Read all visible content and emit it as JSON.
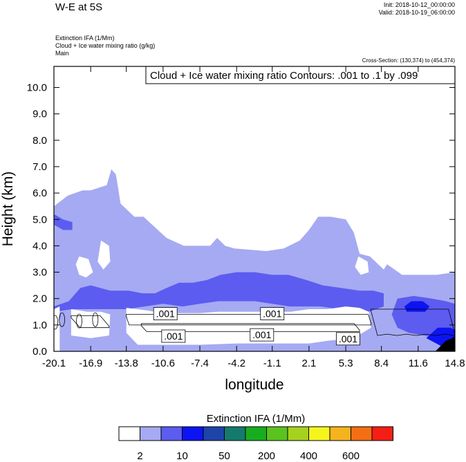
{
  "header": {
    "title": "W-E at 5S",
    "init": "Init: 2018-10-12_00:00:00",
    "valid": "Valid: 2018-10-19_06:00:00",
    "field_lines": [
      "Extinction IFA   (1/Mm)",
      "Cloud + Ice water mixing ratio   (g/kg)",
      "Main"
    ],
    "cross_section": "Cross-Section: (130,374) to (454,374)"
  },
  "chart_data": {
    "type": "heatmap",
    "contour_info": "Cloud + Ice water mixing ratio Contours: .001 to .1 by .099",
    "xlabel": "longitude",
    "ylabel": "Height (km)",
    "x_ticks": [
      "-20.1",
      "-16.9",
      "-13.8",
      "-10.6",
      "-7.4",
      "-4.2",
      "-1.1",
      "2.1",
      "5.3",
      "8.4",
      "11.6",
      "14.8"
    ],
    "y_ticks": [
      "0.0",
      "1.0",
      "2.0",
      "3.0",
      "4.0",
      "5.0",
      "6.0",
      "7.0",
      "8.0",
      "9.0",
      "10.0"
    ],
    "xlim": [
      -20.1,
      14.8
    ],
    "ylim": [
      0,
      10.8
    ],
    "contour_labels": [
      {
        "text": ".001",
        "x": -10.4,
        "y": 1.4
      },
      {
        "text": ".001",
        "x": -1.1,
        "y": 1.4
      },
      {
        "text": ".001",
        "x": -9.7,
        "y": 0.55
      },
      {
        "text": ".001",
        "x": -2.0,
        "y": 0.6
      },
      {
        "text": ".001",
        "x": 5.5,
        "y": 0.45
      }
    ],
    "regions": [
      {
        "level": "2-5",
        "color": "#a5aaf2",
        "points": [
          [
            -20.1,
            5.5
          ],
          [
            -18.9,
            5.9
          ],
          [
            -17.6,
            6.1
          ],
          [
            -16.9,
            6.1
          ],
          [
            -16.2,
            6.2
          ],
          [
            -15.5,
            6.3
          ],
          [
            -15.1,
            6.9
          ],
          [
            -14.7,
            6.7
          ],
          [
            -14.3,
            5.6
          ],
          [
            -13.1,
            5.1
          ],
          [
            -12.3,
            5.1
          ],
          [
            -11.3,
            4.7
          ],
          [
            -10.3,
            4.3
          ],
          [
            -8.8,
            4.0
          ],
          [
            -6.5,
            4.0
          ],
          [
            -5.9,
            4.3
          ],
          [
            -5.2,
            4.0
          ],
          [
            -4.4,
            3.9
          ],
          [
            -1.6,
            3.8
          ],
          [
            -0.1,
            3.9
          ],
          [
            1.3,
            4.2
          ],
          [
            2.1,
            4.6
          ],
          [
            2.9,
            5.1
          ],
          [
            4.0,
            5.1
          ],
          [
            5.3,
            5.0
          ],
          [
            6.0,
            4.5
          ],
          [
            6.5,
            3.7
          ],
          [
            7.4,
            3.6
          ],
          [
            8.6,
            3.1
          ],
          [
            8.9,
            3.3
          ],
          [
            10.2,
            2.9
          ],
          [
            11.6,
            2.9
          ],
          [
            13.2,
            2.9
          ],
          [
            14.8,
            3.0
          ],
          [
            14.8,
            0.0
          ],
          [
            -20.1,
            0.0
          ]
        ]
      },
      {
        "level": "5-10",
        "color": "#5c5cf0",
        "points": [
          [
            -20.1,
            1.7
          ],
          [
            -18.8,
            1.9
          ],
          [
            -17.8,
            2.4
          ],
          [
            -16.9,
            2.5
          ],
          [
            -15.2,
            2.3
          ],
          [
            -13.6,
            2.3
          ],
          [
            -12.4,
            2.2
          ],
          [
            -11.3,
            2.2
          ],
          [
            -10.3,
            2.4
          ],
          [
            -9.2,
            2.6
          ],
          [
            -8.0,
            2.6
          ],
          [
            -6.8,
            2.7
          ],
          [
            -5.6,
            2.9
          ],
          [
            -4.2,
            3.0
          ],
          [
            -2.6,
            3.0
          ],
          [
            -1.1,
            2.9
          ],
          [
            0.3,
            2.9
          ],
          [
            1.9,
            2.7
          ],
          [
            3.3,
            2.5
          ],
          [
            4.9,
            2.4
          ],
          [
            6.5,
            2.3
          ],
          [
            7.7,
            2.3
          ],
          [
            8.6,
            2.2
          ],
          [
            8.6,
            1.7
          ],
          [
            7.3,
            1.5
          ],
          [
            6.0,
            1.5
          ],
          [
            4.7,
            1.6
          ],
          [
            3.1,
            1.7
          ],
          [
            1.7,
            1.7
          ],
          [
            0.4,
            1.7
          ],
          [
            -1.1,
            1.8
          ],
          [
            -2.6,
            1.9
          ],
          [
            -4.2,
            1.9
          ],
          [
            -5.8,
            1.9
          ],
          [
            -7.4,
            1.8
          ],
          [
            -8.9,
            1.7
          ],
          [
            -10.6,
            1.8
          ],
          [
            -12.2,
            1.7
          ],
          [
            -13.8,
            1.6
          ],
          [
            -15.4,
            1.6
          ],
          [
            -16.9,
            1.6
          ],
          [
            -18.5,
            1.6
          ],
          [
            -20.1,
            1.5
          ]
        ]
      },
      {
        "level": "5-10",
        "color": "#5c5cf0",
        "points": [
          [
            -20.1,
            5.2
          ],
          [
            -19.3,
            5.0
          ],
          [
            -18.5,
            4.9
          ],
          [
            -18.5,
            4.6
          ],
          [
            -19.3,
            4.6
          ],
          [
            -20.1,
            4.8
          ]
        ]
      },
      {
        "level": "5-10",
        "color": "#5c5cf0",
        "points": [
          [
            -20.1,
            1.4
          ],
          [
            -19.8,
            1.6
          ],
          [
            -19.5,
            1.4
          ],
          [
            -19.7,
            0.9
          ],
          [
            -20.1,
            0.8
          ]
        ]
      },
      {
        "level": "5-10",
        "color": "#5c5cf0",
        "points": [
          [
            9.8,
            2.0
          ],
          [
            11.2,
            2.1
          ],
          [
            12.8,
            2.0
          ],
          [
            14.0,
            1.9
          ],
          [
            14.8,
            1.8
          ],
          [
            14.8,
            0.4
          ],
          [
            13.4,
            0.5
          ],
          [
            12.1,
            0.6
          ],
          [
            10.8,
            0.7
          ],
          [
            9.8,
            0.9
          ],
          [
            9.3,
            1.4
          ]
        ]
      },
      {
        "level": "10-20",
        "color": "#0d14f2",
        "points": [
          [
            10.4,
            1.7
          ],
          [
            11.0,
            1.9
          ],
          [
            12.0,
            1.9
          ],
          [
            12.6,
            1.7
          ],
          [
            12.2,
            1.5
          ],
          [
            11.3,
            1.5
          ],
          [
            10.6,
            1.5
          ]
        ]
      },
      {
        "level": "10-20",
        "color": "#0d14f2",
        "points": [
          [
            12.3,
            0.5
          ],
          [
            13.3,
            0.9
          ],
          [
            14.4,
            0.9
          ],
          [
            14.8,
            0.8
          ],
          [
            14.8,
            0.2
          ],
          [
            13.6,
            0.2
          ]
        ]
      },
      {
        "level": "600+",
        "color": "#000000",
        "points": [
          [
            13.1,
            0.0
          ],
          [
            14.0,
            0.4
          ],
          [
            14.6,
            0.5
          ],
          [
            14.8,
            0.6
          ],
          [
            14.8,
            0.0
          ]
        ]
      }
    ],
    "clear_regions": [
      {
        "points": [
          [
            -13.8,
            1.65
          ],
          [
            -12.0,
            1.55
          ],
          [
            -10.6,
            1.45
          ],
          [
            -9.0,
            1.45
          ],
          [
            -7.4,
            1.45
          ],
          [
            -5.8,
            1.5
          ],
          [
            -4.2,
            1.5
          ],
          [
            -2.6,
            1.5
          ],
          [
            -1.1,
            1.5
          ],
          [
            0.5,
            1.5
          ],
          [
            2.1,
            1.6
          ],
          [
            3.7,
            1.6
          ],
          [
            5.3,
            1.7
          ],
          [
            6.5,
            1.65
          ],
          [
            7.3,
            1.5
          ],
          [
            7.5,
            0.9
          ],
          [
            6.0,
            0.5
          ],
          [
            3.7,
            0.4
          ],
          [
            2.1,
            0.3
          ],
          [
            -1.1,
            0.3
          ],
          [
            -4.2,
            0.3
          ],
          [
            -7.4,
            0.25
          ],
          [
            -10.6,
            0.25
          ],
          [
            -12.8,
            0.25
          ],
          [
            -13.8,
            0.7
          ]
        ]
      },
      {
        "points": [
          [
            -18.6,
            1.6
          ],
          [
            -17.2,
            1.5
          ],
          [
            -16.0,
            1.5
          ],
          [
            -15.2,
            1.4
          ],
          [
            -15.3,
            0.6
          ],
          [
            -16.9,
            0.5
          ],
          [
            -18.6,
            0.6
          ]
        ]
      },
      {
        "points": [
          [
            -20.1,
            1.6
          ],
          [
            -19.6,
            1.7
          ],
          [
            -19.6,
            0.0
          ],
          [
            -20.1,
            0.0
          ]
        ]
      },
      {
        "points": [
          [
            -17.9,
            3.6
          ],
          [
            -17.1,
            3.5
          ],
          [
            -16.7,
            3.0
          ],
          [
            -17.3,
            2.8
          ],
          [
            -17.9,
            2.9
          ],
          [
            -18.2,
            3.3
          ]
        ]
      },
      {
        "points": [
          [
            -16.0,
            4.2
          ],
          [
            -15.3,
            4.0
          ],
          [
            -15.2,
            3.4
          ],
          [
            -15.8,
            3.1
          ],
          [
            -16.3,
            3.4
          ]
        ]
      },
      {
        "points": [
          [
            6.4,
            3.6
          ],
          [
            7.2,
            3.4
          ],
          [
            7.3,
            3.0
          ],
          [
            6.6,
            2.9
          ],
          [
            6.1,
            3.2
          ]
        ]
      }
    ]
  },
  "colorbar": {
    "title": "Extinction IFA  (1/Mm)",
    "colors": [
      "#ffffff",
      "#a5aaf2",
      "#5c5cf0",
      "#0d14f2",
      "#1e44aa",
      "#157a6e",
      "#18ad1e",
      "#5ac31e",
      "#a5d21e",
      "#f5f51e",
      "#f5b41e",
      "#f56e14",
      "#f51e14"
    ],
    "labels": [
      {
        "text": "2",
        "after_box": 1
      },
      {
        "text": "10",
        "after_box": 3
      },
      {
        "text": "50",
        "after_box": 5
      },
      {
        "text": "200",
        "after_box": 7
      },
      {
        "text": "400",
        "after_box": 9
      },
      {
        "text": "600",
        "after_box": 11
      }
    ]
  }
}
